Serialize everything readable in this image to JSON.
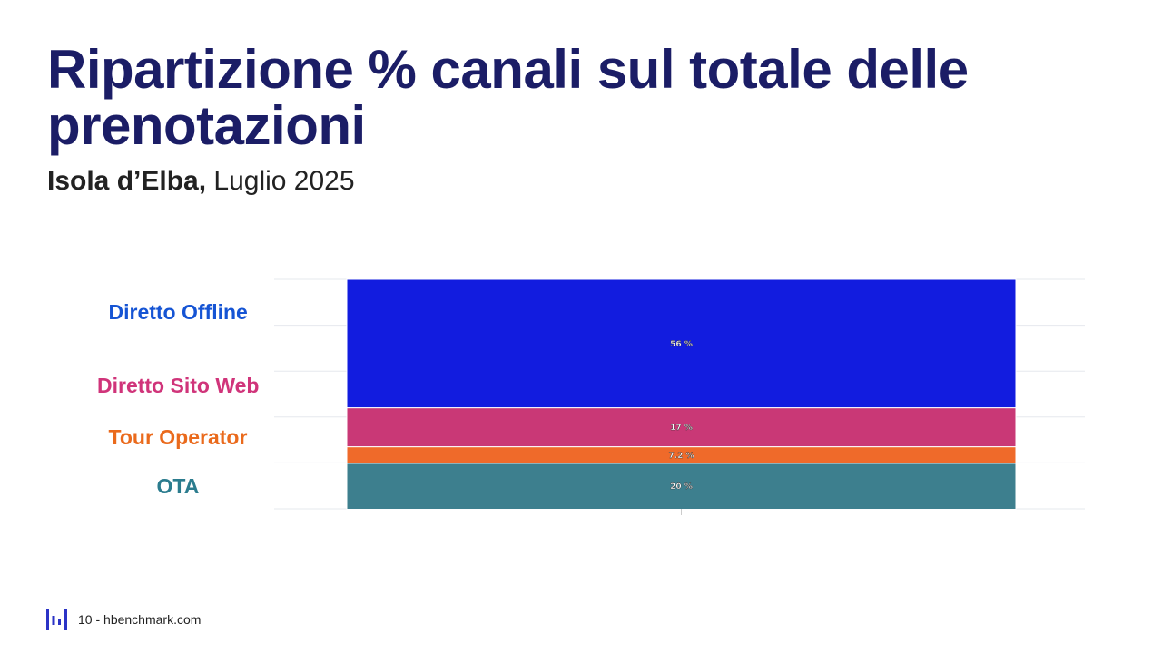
{
  "title": "Ripartizione % canali sul totale delle prenotazioni",
  "subtitle": {
    "place": "Isola d’Elba,",
    "period": " Luglio 2025"
  },
  "footer": {
    "page": "10",
    "separator": " - ",
    "site": "hbenchmark.com"
  },
  "colors": {
    "title": "#1b1d66",
    "direct_offline": "#121cdf",
    "direct_web": "#c93876",
    "tour_operator": "#ef6a2a",
    "ota": "#3d7f8e",
    "logo": "#2b33c6"
  },
  "chart_data": {
    "type": "bar",
    "stacked": true,
    "categories": [
      "Diretto Offline",
      "Diretto Sito Web",
      "Tour Operator",
      "OTA"
    ],
    "series": [
      {
        "name": "Diretto Offline",
        "value": 56,
        "label": "56 %",
        "color": "#121cdf"
      },
      {
        "name": "Diretto Sito Web",
        "value": 17,
        "label": "17 %",
        "color": "#c93876"
      },
      {
        "name": "Tour Operator",
        "value": 7.2,
        "label": "7.2 %",
        "color": "#ef6a2a"
      },
      {
        "name": "OTA",
        "value": 20,
        "label": "20 %",
        "color": "#3d7f8e"
      }
    ],
    "ylim": [
      0,
      100
    ],
    "grid": true
  }
}
